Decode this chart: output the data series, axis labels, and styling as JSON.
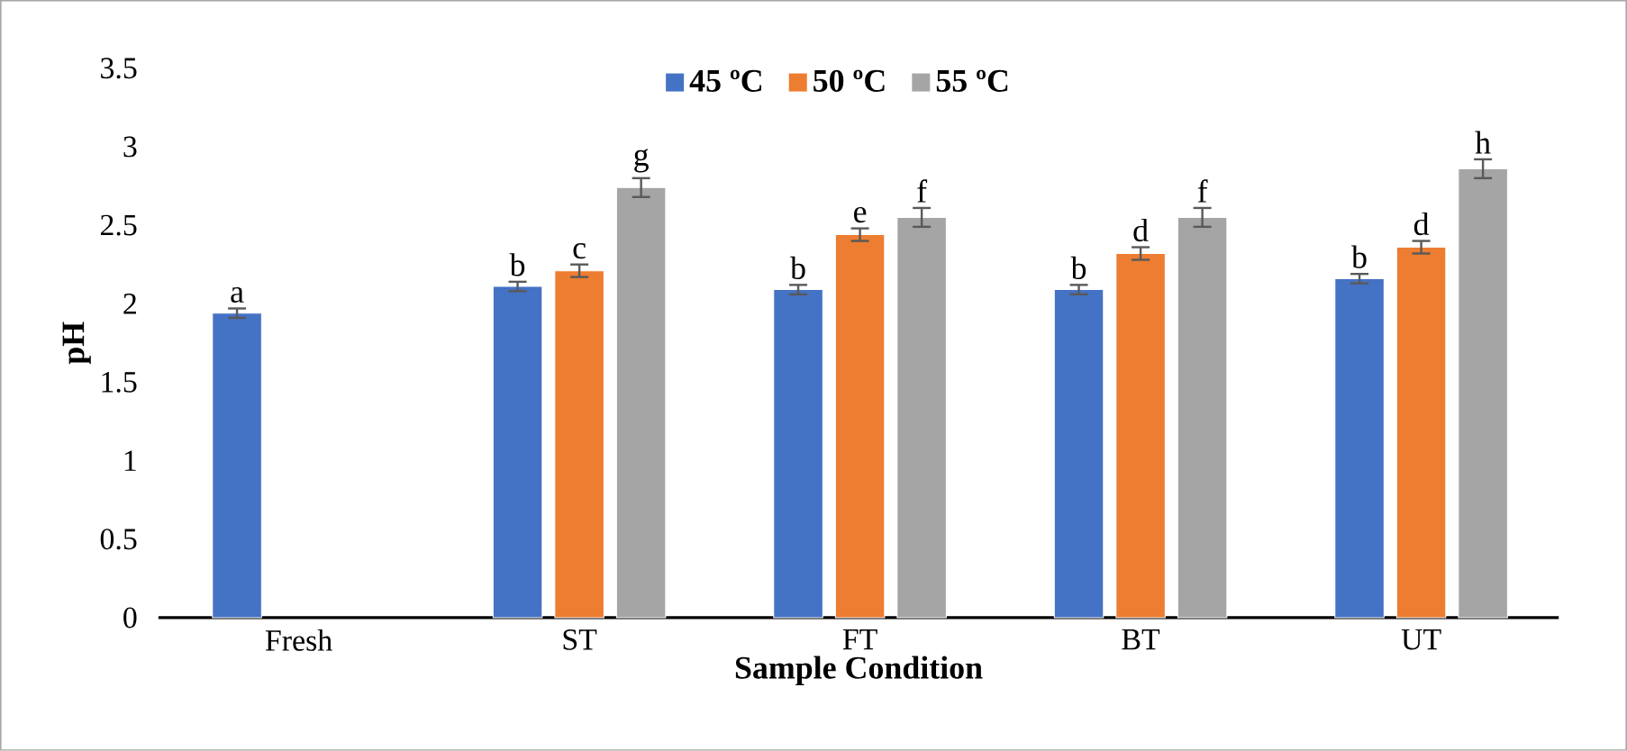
{
  "chart_data": {
    "type": "bar",
    "xlabel": "Sample Condition",
    "ylabel": "pH",
    "categories": [
      "Fresh",
      "ST",
      "FT",
      "BT",
      "UT"
    ],
    "series": [
      {
        "name": "45 ºC",
        "color": "#4472c4",
        "values": [
          1.94,
          2.11,
          2.09,
          2.09,
          2.16
        ],
        "errors": [
          0.03,
          0.03,
          0.03,
          0.03,
          0.03
        ]
      },
      {
        "name": "50 ºC",
        "color": "#ed7d31",
        "values": [
          null,
          2.21,
          2.44,
          2.32,
          2.36
        ],
        "errors": [
          null,
          0.04,
          0.04,
          0.04,
          0.04
        ]
      },
      {
        "name": "55 ºC",
        "color": "#a5a5a5",
        "values": [
          null,
          2.74,
          2.55,
          2.55,
          2.86
        ],
        "errors": [
          null,
          0.06,
          0.06,
          0.06,
          0.06
        ]
      }
    ],
    "ylim": [
      0,
      3.5
    ],
    "yticks": [
      0,
      0.5,
      1,
      1.5,
      2,
      2.5,
      3,
      3.5
    ],
    "legend": "top",
    "annotations": [
      "a",
      "b",
      "c",
      "g",
      "b",
      "e",
      "f",
      "b",
      "d",
      "f",
      "b",
      "d",
      "h"
    ]
  }
}
